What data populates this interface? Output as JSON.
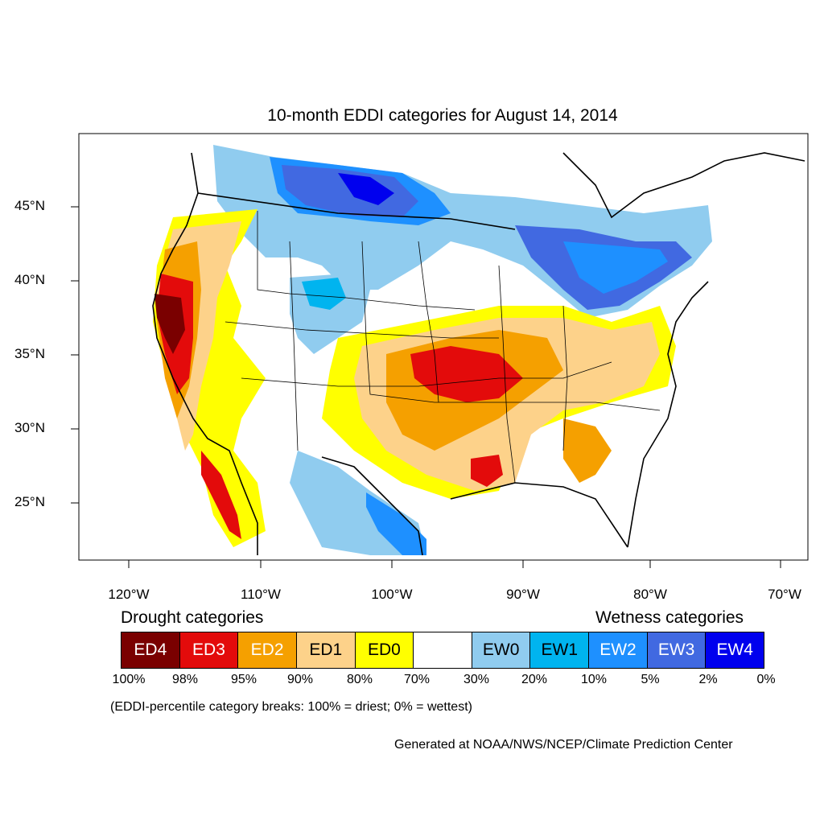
{
  "title": "10-month EDDI categories for August 14, 2014",
  "lat_labels": [
    "45°N",
    "40°N",
    "35°N",
    "30°N",
    "25°N"
  ],
  "lon_labels": [
    "120°W",
    "110°W",
    "100°W",
    "90°W",
    "80°W",
    "70°W"
  ],
  "legend": {
    "drought_heading": "Drought categories",
    "wetness_heading": "Wetness categories",
    "categories": [
      {
        "label": "ED4",
        "color": "#7a0000",
        "text_color": "#ffffff"
      },
      {
        "label": "ED3",
        "color": "#e30b0b",
        "text_color": "#ffffff"
      },
      {
        "label": "ED2",
        "color": "#f5a000",
        "text_color": "#ffffff"
      },
      {
        "label": "ED1",
        "color": "#fdd28a",
        "text_color": "#000000"
      },
      {
        "label": "ED0",
        "color": "#ffff00",
        "text_color": "#000000"
      },
      {
        "label": "",
        "color": "#ffffff",
        "text_color": "#000000"
      },
      {
        "label": "EW0",
        "color": "#90ccef",
        "text_color": "#000000"
      },
      {
        "label": "EW1",
        "color": "#00b4ef",
        "text_color": "#000000"
      },
      {
        "label": "EW2",
        "color": "#1e90ff",
        "text_color": "#ffffff"
      },
      {
        "label": "EW3",
        "color": "#4169e1",
        "text_color": "#ffffff"
      },
      {
        "label": "EW4",
        "color": "#0000ee",
        "text_color": "#ffffff"
      }
    ],
    "breaks": [
      "100%",
      "98%",
      "95%",
      "90%",
      "80%",
      "70%",
      "30%",
      "20%",
      "10%",
      "5%",
      "2%",
      "0%"
    ]
  },
  "note": "(EDDI-percentile category breaks: 100% = driest; 0% = wettest)",
  "credit": "Generated at NOAA/NWS/NCEP/Climate Prediction Center"
}
